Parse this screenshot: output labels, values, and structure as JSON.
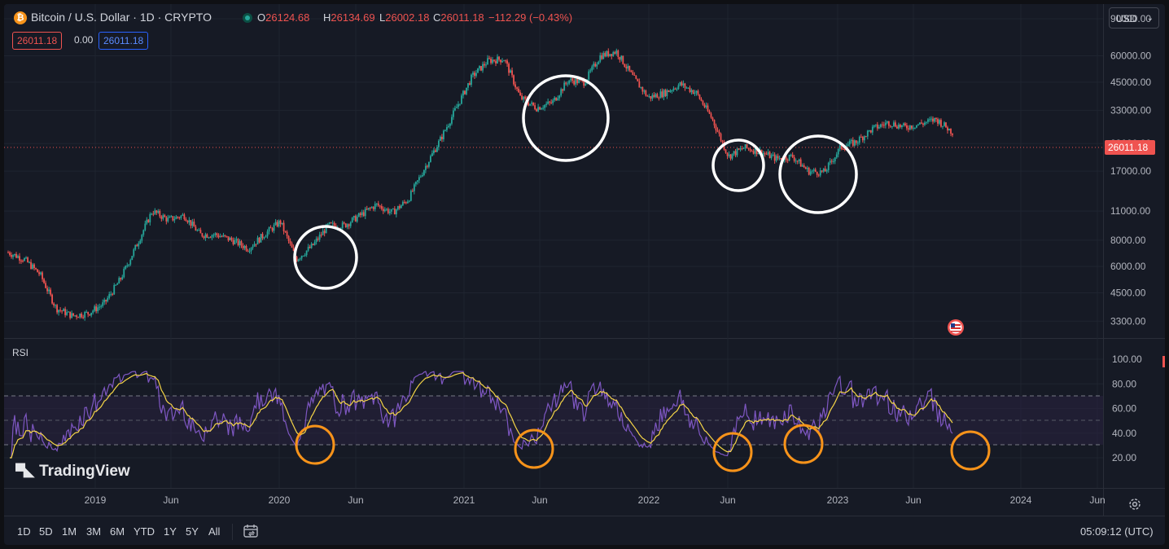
{
  "header": {
    "title": "Bitcoin / U.S. Dollar · 1D · CRYPTO",
    "logo_letter": "₿",
    "ohlc": [
      {
        "key": "O",
        "value": "26124.68"
      },
      {
        "key": "H",
        "value": "26134.69"
      },
      {
        "key": "L",
        "value": "26002.18"
      },
      {
        "key": "C",
        "value": "26011.18"
      }
    ],
    "change": "−112.29 (−0.43%)",
    "price_boxes": {
      "bid": "26011.18",
      "spread": "0.00",
      "ask": "26011.18"
    },
    "currency": "USD"
  },
  "price_axis": {
    "ticks": [
      "90000.00",
      "60000.00",
      "45000.00",
      "33000.00",
      "23000.00",
      "17000.00",
      "11000.00",
      "8000.00",
      "6000.00",
      "4500.00",
      "3300.00"
    ],
    "current_price_label": "26011.18"
  },
  "rsi": {
    "label": "RSI",
    "ticks": [
      "100.00",
      "80.00",
      "60.00",
      "40.00",
      "20.00"
    ]
  },
  "time_axis": {
    "ticks": [
      "2019",
      "Jun",
      "2020",
      "Jun",
      "2021",
      "Jun",
      "2022",
      "Jun",
      "2023",
      "Jun",
      "2024",
      "Jun"
    ]
  },
  "branding": {
    "name": "TradingView"
  },
  "bottom_bar": {
    "ranges": [
      "1D",
      "5D",
      "1M",
      "3M",
      "6M",
      "YTD",
      "1Y",
      "5Y",
      "All"
    ],
    "clock": "05:09:12 (UTC)"
  },
  "colors": {
    "up": "#26a69a",
    "down": "#ef5350",
    "rsi_line": "#7e57c2",
    "rsi_ma": "#f5d547",
    "annotation_white": "#ffffff",
    "annotation_orange": "#f7931a"
  },
  "chart_data": {
    "type": "candlestick",
    "series": [
      {
        "name": "Bitcoin / U.S. Dollar",
        "x": [
          "2018-09",
          "2018-10",
          "2018-11",
          "2018-12",
          "2019-01",
          "2019-02",
          "2019-03",
          "2019-04",
          "2019-05",
          "2019-06",
          "2019-07",
          "2019-08",
          "2019-09",
          "2019-10",
          "2019-11",
          "2019-12",
          "2020-01",
          "2020-02",
          "2020-03",
          "2020-04",
          "2020-05",
          "2020-06",
          "2020-07",
          "2020-08",
          "2020-09",
          "2020-10",
          "2020-11",
          "2020-12",
          "2021-01",
          "2021-02",
          "2021-03",
          "2021-04",
          "2021-05",
          "2021-06",
          "2021-07",
          "2021-08",
          "2021-09",
          "2021-10",
          "2021-11",
          "2021-12",
          "2022-01",
          "2022-02",
          "2022-03",
          "2022-04",
          "2022-05",
          "2022-06",
          "2022-07",
          "2022-08",
          "2022-09",
          "2022-10",
          "2022-11",
          "2022-12",
          "2023-01",
          "2023-02",
          "2023-03",
          "2023-04",
          "2023-05",
          "2023-06",
          "2023-07",
          "2023-08"
        ],
        "values": [
          7000,
          6500,
          5500,
          3800,
          3500,
          3600,
          4000,
          5200,
          7500,
          11000,
          10000,
          10500,
          8500,
          8500,
          8000,
          7300,
          8500,
          9800,
          6500,
          7500,
          9400,
          9400,
          10500,
          11800,
          10800,
          12500,
          17500,
          24000,
          34000,
          48000,
          57000,
          58000,
          38000,
          34000,
          36000,
          46000,
          45000,
          60000,
          63000,
          48000,
          38000,
          40000,
          44000,
          40000,
          30000,
          20000,
          22000,
          21000,
          19500,
          20000,
          17000,
          16800,
          22000,
          23500,
          27000,
          29000,
          27500,
          28500,
          30000,
          26011
        ]
      }
    ],
    "ylim": [
      3000,
      90000
    ],
    "yscale": "log",
    "current_price": 26011.18,
    "annotations": [
      "2020-03",
      "2021-06",
      "2022-06",
      "2022-11"
    ]
  }
}
